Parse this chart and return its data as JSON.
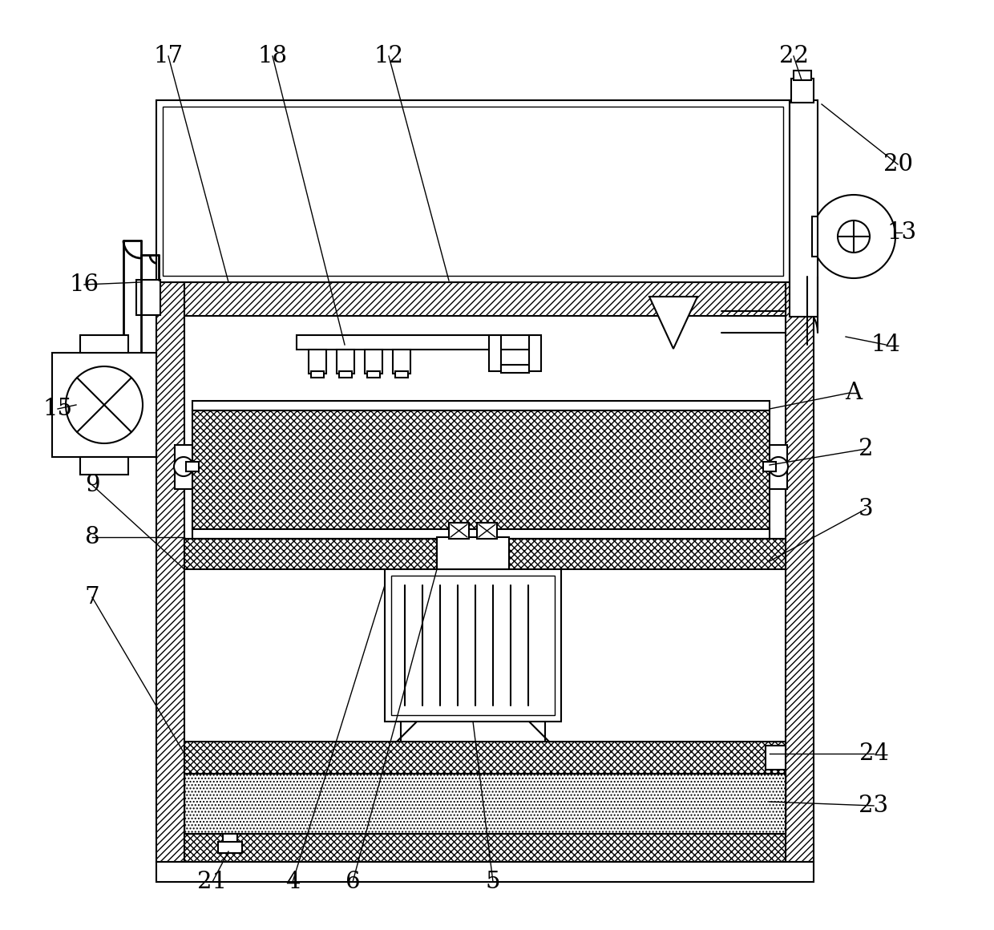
{
  "bg_color": "#ffffff",
  "line_color": "#000000",
  "figsize": [
    12.4,
    11.6
  ],
  "dpi": 100
}
